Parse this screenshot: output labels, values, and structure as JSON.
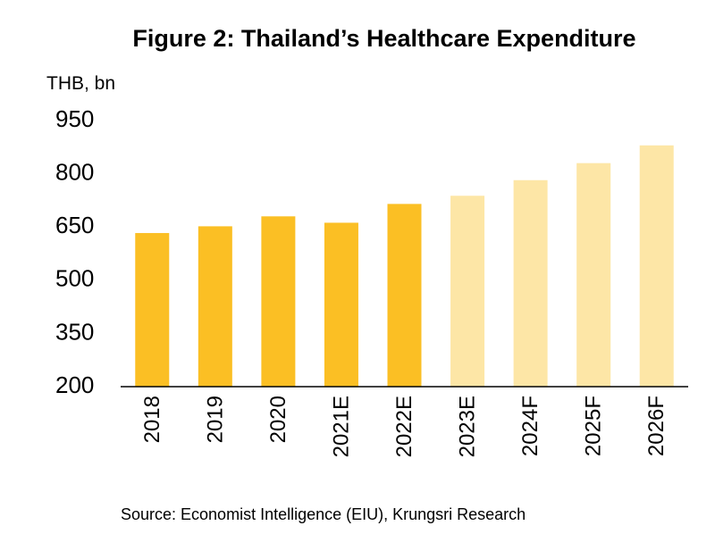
{
  "chart_data": {
    "type": "bar",
    "title": "Figure 2: Thailand’s Healthcare Expenditure",
    "ylabel": "THB, bn",
    "xlabel": "",
    "categories": [
      "2018",
      "2019",
      "2020",
      "2021E",
      "2022E",
      "2023E",
      "2024F",
      "2025F",
      "2026F"
    ],
    "values": [
      633,
      652,
      680,
      662,
      715,
      738,
      782,
      830,
      880
    ],
    "ylim": [
      200,
      950
    ],
    "yticks": [
      200,
      350,
      500,
      650,
      800,
      950
    ],
    "grid": false,
    "series_colors": [
      "#FBBF24",
      "#FBBF24",
      "#FBBF24",
      "#FBBF24",
      "#FBBF24",
      "#FDE6A6",
      "#FDE6A6",
      "#FDE6A6",
      "#FDE6A6"
    ]
  },
  "source": "Source: Economist Intelligence (EIU), Krungsri Research"
}
